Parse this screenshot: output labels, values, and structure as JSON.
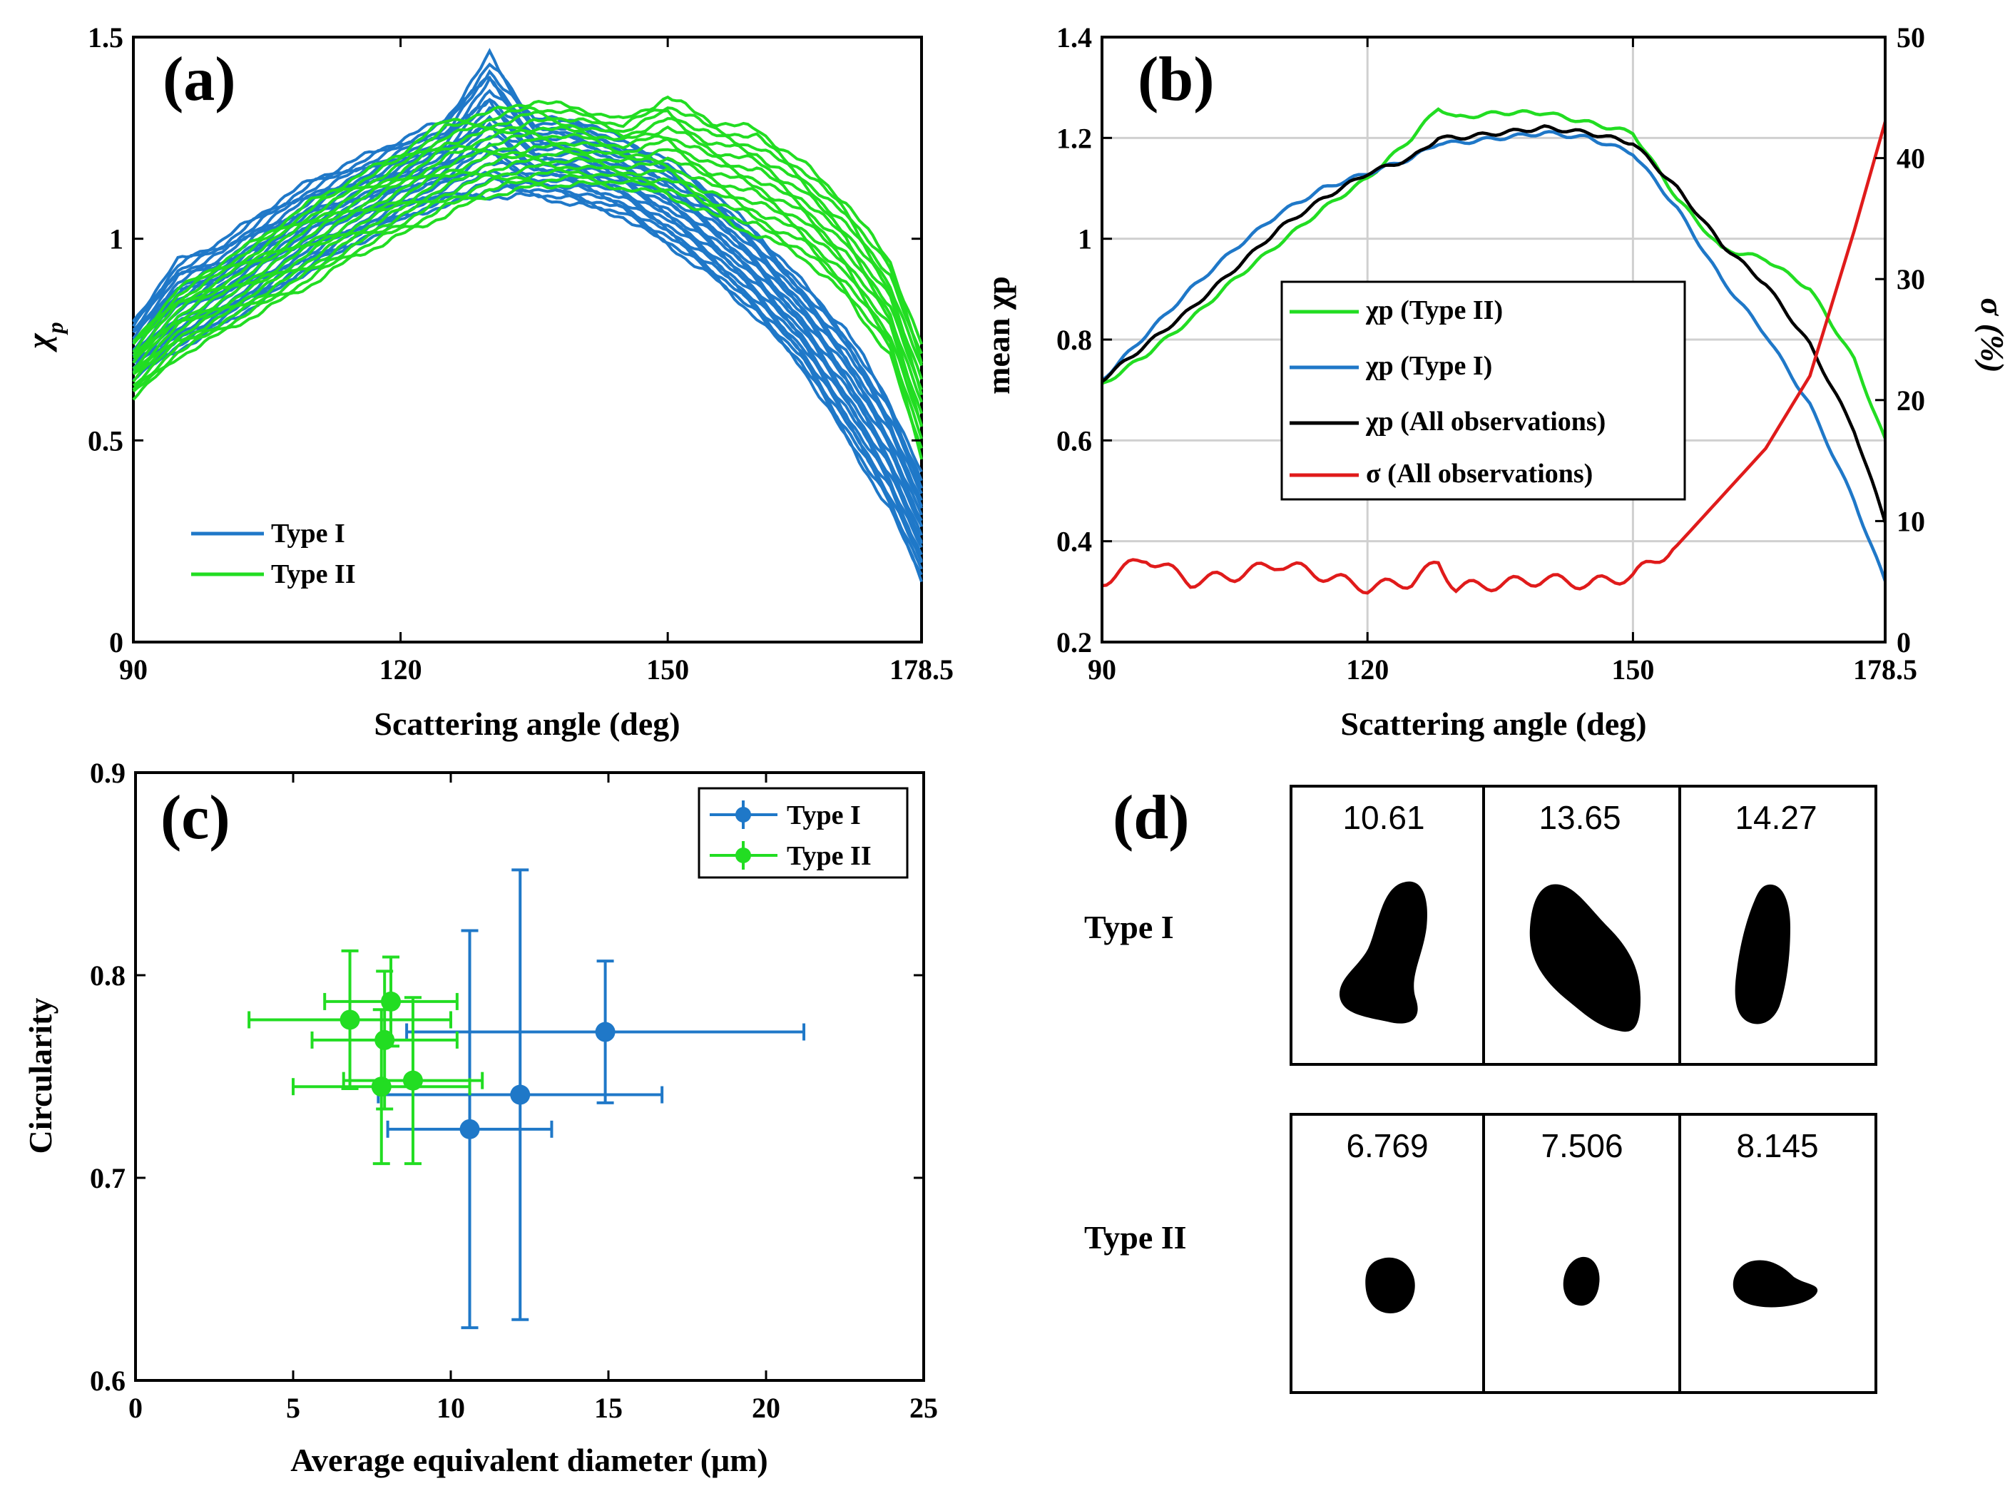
{
  "colors": {
    "type1": "#1f78c8",
    "type2": "#22dd22",
    "all": "#000000",
    "sigma": "#e01b1b"
  },
  "chart_data": [
    {
      "panel": "(a)",
      "type": "line",
      "xlabel": "Scattering angle (deg)",
      "ylabel": "χp",
      "xlim": [
        90,
        178.5
      ],
      "ylim": [
        0,
        1.5
      ],
      "xticks": [
        "90",
        "120",
        "150",
        "178.5"
      ],
      "yticks": [
        "0",
        "0.5",
        "1",
        "1.5"
      ],
      "legend": {
        "position": "bottom-left",
        "entries": [
          "Type I",
          "Type II"
        ]
      },
      "series": [
        {
          "name": "Type I",
          "color_key": "type1",
          "count": 22,
          "envelope_x": [
            90,
            95,
            100,
            105,
            110,
            115,
            120,
            125,
            130,
            135,
            140,
            145,
            150,
            155,
            160,
            165,
            170,
            175,
            178.5
          ],
          "min": [
            0.65,
            0.72,
            0.78,
            0.85,
            0.92,
            0.98,
            1.04,
            1.08,
            1.1,
            1.1,
            1.08,
            1.05,
            0.98,
            0.9,
            0.8,
            0.68,
            0.5,
            0.32,
            0.15
          ],
          "max": [
            0.8,
            0.95,
            1.0,
            1.08,
            1.15,
            1.2,
            1.25,
            1.3,
            1.46,
            1.3,
            1.3,
            1.25,
            1.2,
            1.12,
            1.02,
            0.9,
            0.78,
            0.6,
            0.42
          ]
        },
        {
          "name": "Type II",
          "color_key": "type2",
          "count": 14,
          "envelope_x": [
            90,
            95,
            100,
            105,
            110,
            115,
            120,
            125,
            130,
            135,
            140,
            145,
            150,
            155,
            160,
            165,
            170,
            175,
            178.5
          ],
          "min": [
            0.6,
            0.7,
            0.76,
            0.82,
            0.88,
            0.95,
            1.0,
            1.05,
            1.1,
            1.12,
            1.13,
            1.12,
            1.1,
            1.05,
            1.0,
            0.95,
            0.85,
            0.7,
            0.45
          ],
          "max": [
            0.75,
            0.88,
            0.95,
            1.02,
            1.1,
            1.16,
            1.22,
            1.3,
            1.32,
            1.35,
            1.33,
            1.3,
            1.36,
            1.3,
            1.28,
            1.2,
            1.1,
            0.95,
            0.75
          ]
        }
      ]
    },
    {
      "panel": "(b)",
      "type": "line",
      "xlabel": "Scattering angle (deg)",
      "ylabel": "mean χp",
      "ylabel_right": "σ (%)",
      "xlim": [
        90,
        178.5
      ],
      "ylim": [
        0.2,
        1.4
      ],
      "ylim_right": [
        0,
        50
      ],
      "xticks": [
        "90",
        "120",
        "150",
        "178.5"
      ],
      "yticks": [
        "0.2",
        "0.4",
        "0.6",
        "0.8",
        "1",
        "1.2",
        "1.4"
      ],
      "yticks_right": [
        "0",
        "10",
        "20",
        "30",
        "40",
        "50"
      ],
      "grid": true,
      "legend": {
        "position": "center-right",
        "entries": [
          "χp (Type II)",
          "χp (Type I)",
          "χp (All observations)",
          "σ (All observations)"
        ]
      },
      "x": [
        90,
        95,
        100,
        105,
        110,
        115,
        120,
        125,
        128,
        130,
        135,
        140,
        145,
        150,
        155,
        160,
        165,
        170,
        175,
        178.5
      ],
      "series": [
        {
          "name": "χp (Type II)",
          "color_key": "type2",
          "axis": "left",
          "values": [
            0.71,
            0.77,
            0.84,
            0.92,
            0.99,
            1.06,
            1.12,
            1.2,
            1.26,
            1.24,
            1.25,
            1.25,
            1.23,
            1.21,
            1.08,
            0.98,
            0.96,
            0.9,
            0.76,
            0.6
          ]
        },
        {
          "name": "χp (Type I)",
          "color_key": "type1",
          "axis": "left",
          "values": [
            0.72,
            0.81,
            0.9,
            0.98,
            1.05,
            1.1,
            1.13,
            1.16,
            1.19,
            1.19,
            1.2,
            1.21,
            1.2,
            1.17,
            1.06,
            0.92,
            0.81,
            0.67,
            0.48,
            0.32
          ]
        },
        {
          "name": "χp (All observations)",
          "color_key": "all",
          "axis": "left",
          "values": [
            0.72,
            0.79,
            0.86,
            0.94,
            1.02,
            1.08,
            1.13,
            1.16,
            1.2,
            1.2,
            1.21,
            1.22,
            1.21,
            1.19,
            1.1,
            0.99,
            0.91,
            0.79,
            0.62,
            0.44
          ]
        },
        {
          "name": "σ (All observations)",
          "color_key": "sigma",
          "axis": "right",
          "values": [
            5,
            7,
            5,
            5.5,
            6.5,
            5.5,
            4.5,
            5,
            6.5,
            4.5,
            4.8,
            5.2,
            4.8,
            5.5,
            8,
            12,
            16,
            22,
            34,
            43
          ]
        }
      ]
    },
    {
      "panel": "(c)",
      "type": "scatter",
      "xlabel": "Average equivalent diameter (μm)",
      "ylabel": "Circularity",
      "xlim": [
        0,
        25
      ],
      "ylim": [
        0.6,
        0.9
      ],
      "xticks": [
        "0",
        "5",
        "10",
        "15",
        "20",
        "25"
      ],
      "yticks": [
        "0.6",
        "0.7",
        "0.8",
        "0.9"
      ],
      "legend": {
        "position": "top-right",
        "entries": [
          "Type I",
          "Type II"
        ]
      },
      "series": [
        {
          "name": "Type I",
          "color_key": "type1",
          "points": [
            {
              "x": 10.6,
              "y": 0.724,
              "xerr": 2.6,
              "yerr": 0.098
            },
            {
              "x": 12.2,
              "y": 0.741,
              "xerr": 4.5,
              "yerr": 0.111
            },
            {
              "x": 14.9,
              "y": 0.772,
              "xerr": 6.3,
              "yerr": 0.035
            }
          ]
        },
        {
          "name": "Type II",
          "color_key": "type2",
          "points": [
            {
              "x": 6.8,
              "y": 0.778,
              "xerr": 3.2,
              "yerr": 0.034
            },
            {
              "x": 7.8,
              "y": 0.745,
              "xerr": 2.8,
              "yerr": 0.038
            },
            {
              "x": 8.1,
              "y": 0.787,
              "xerr": 2.1,
              "yerr": 0.022
            },
            {
              "x": 7.9,
              "y": 0.768,
              "xerr": 2.3,
              "yerr": 0.034
            },
            {
              "x": 8.8,
              "y": 0.748,
              "xerr": 2.2,
              "yerr": 0.041
            }
          ]
        }
      ]
    }
  ],
  "panel_d": {
    "label": "(d)",
    "rows": [
      {
        "label": "Type I",
        "values": [
          "10.61",
          "13.65",
          "14.27"
        ]
      },
      {
        "label": "Type II",
        "values": [
          "6.769",
          "7.506",
          "8.145"
        ]
      }
    ]
  }
}
